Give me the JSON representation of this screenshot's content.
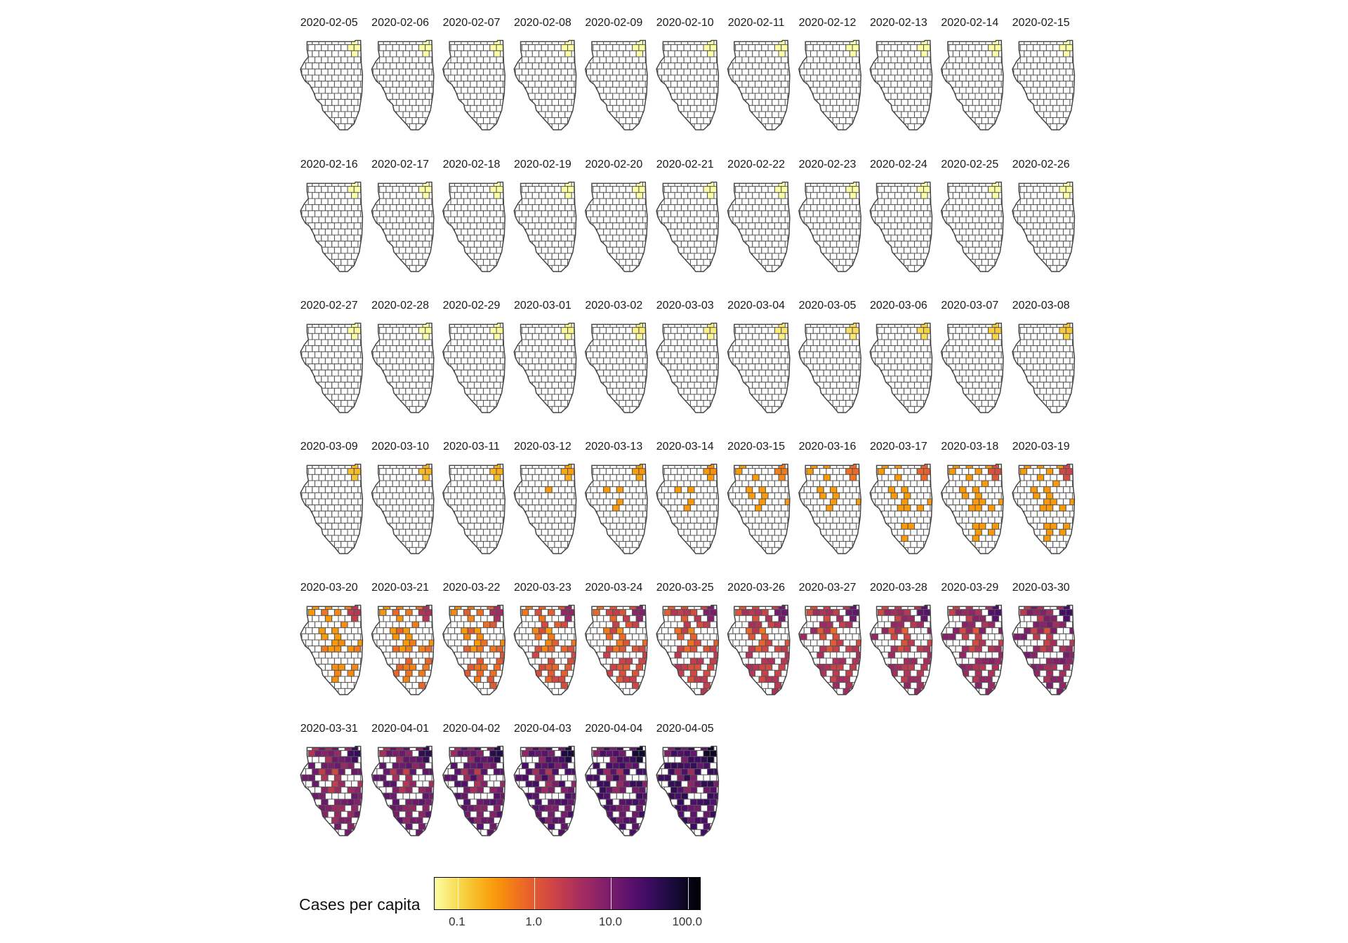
{
  "panels": [
    {
      "date": "2020-02-05",
      "level": 0.05
    },
    {
      "date": "2020-02-06",
      "level": 0.05
    },
    {
      "date": "2020-02-07",
      "level": 0.05
    },
    {
      "date": "2020-02-08",
      "level": 0.05
    },
    {
      "date": "2020-02-09",
      "level": 0.05
    },
    {
      "date": "2020-02-10",
      "level": 0.05
    },
    {
      "date": "2020-02-11",
      "level": 0.05
    },
    {
      "date": "2020-02-12",
      "level": 0.05
    },
    {
      "date": "2020-02-13",
      "level": 0.05
    },
    {
      "date": "2020-02-14",
      "level": 0.05
    },
    {
      "date": "2020-02-15",
      "level": 0.05
    },
    {
      "date": "2020-02-16",
      "level": 0.05
    },
    {
      "date": "2020-02-17",
      "level": 0.05
    },
    {
      "date": "2020-02-18",
      "level": 0.05
    },
    {
      "date": "2020-02-19",
      "level": 0.05
    },
    {
      "date": "2020-02-20",
      "level": 0.05
    },
    {
      "date": "2020-02-21",
      "level": 0.05
    },
    {
      "date": "2020-02-22",
      "level": 0.05
    },
    {
      "date": "2020-02-23",
      "level": 0.05
    },
    {
      "date": "2020-02-24",
      "level": 0.05
    },
    {
      "date": "2020-02-25",
      "level": 0.05
    },
    {
      "date": "2020-02-26",
      "level": 0.05
    },
    {
      "date": "2020-02-27",
      "level": 0.06
    },
    {
      "date": "2020-02-28",
      "level": 0.06
    },
    {
      "date": "2020-02-29",
      "level": 0.06
    },
    {
      "date": "2020-03-01",
      "level": 0.07
    },
    {
      "date": "2020-03-02",
      "level": 0.08
    },
    {
      "date": "2020-03-03",
      "level": 0.08
    },
    {
      "date": "2020-03-04",
      "level": 0.09
    },
    {
      "date": "2020-03-05",
      "level": 0.11
    },
    {
      "date": "2020-03-06",
      "level": 0.13
    },
    {
      "date": "2020-03-07",
      "level": 0.15
    },
    {
      "date": "2020-03-08",
      "level": 0.16
    },
    {
      "date": "2020-03-09",
      "level": 0.2
    },
    {
      "date": "2020-03-10",
      "level": 0.22
    },
    {
      "date": "2020-03-11",
      "level": 0.24
    },
    {
      "date": "2020-03-12",
      "level": 0.3
    },
    {
      "date": "2020-03-13",
      "level": 0.35
    },
    {
      "date": "2020-03-14",
      "level": 0.4
    },
    {
      "date": "2020-03-15",
      "level": 0.6
    },
    {
      "date": "2020-03-16",
      "level": 0.8
    },
    {
      "date": "2020-03-17",
      "level": 1.0
    },
    {
      "date": "2020-03-18",
      "level": 1.5
    },
    {
      "date": "2020-03-19",
      "level": 2.0
    },
    {
      "date": "2020-03-20",
      "level": 3.0
    },
    {
      "date": "2020-03-21",
      "level": 4.0
    },
    {
      "date": "2020-03-22",
      "level": 5.0
    },
    {
      "date": "2020-03-23",
      "level": 7.0
    },
    {
      "date": "2020-03-24",
      "level": 9.0
    },
    {
      "date": "2020-03-25",
      "level": 11.0
    },
    {
      "date": "2020-03-26",
      "level": 14.0
    },
    {
      "date": "2020-03-27",
      "level": 17.0
    },
    {
      "date": "2020-03-28",
      "level": 21.0
    },
    {
      "date": "2020-03-29",
      "level": 26.0
    },
    {
      "date": "2020-03-30",
      "level": 32.0
    },
    {
      "date": "2020-03-31",
      "level": 40.0
    },
    {
      "date": "2020-04-01",
      "level": 50.0
    },
    {
      "date": "2020-04-02",
      "level": 60.0
    },
    {
      "date": "2020-04-03",
      "level": 75.0
    },
    {
      "date": "2020-04-04",
      "level": 90.0
    },
    {
      "date": "2020-04-05",
      "level": 110.0
    }
  ],
  "legend": {
    "title": "Cases per capita",
    "scale": "log10",
    "range": [
      0.05,
      150
    ],
    "ticks": [
      {
        "value": 0.1,
        "label": "0.1"
      },
      {
        "value": 1,
        "label": "1.0"
      },
      {
        "value": 10,
        "label": "10.0"
      },
      {
        "value": 100,
        "label": "100.0"
      }
    ],
    "palette": [
      "#fcffa4",
      "#f7d13d",
      "#fb9b06",
      "#ed6925",
      "#cf4446",
      "#a52c60",
      "#781c6d",
      "#4a0c6b",
      "#1b0c41",
      "#000004"
    ]
  }
}
